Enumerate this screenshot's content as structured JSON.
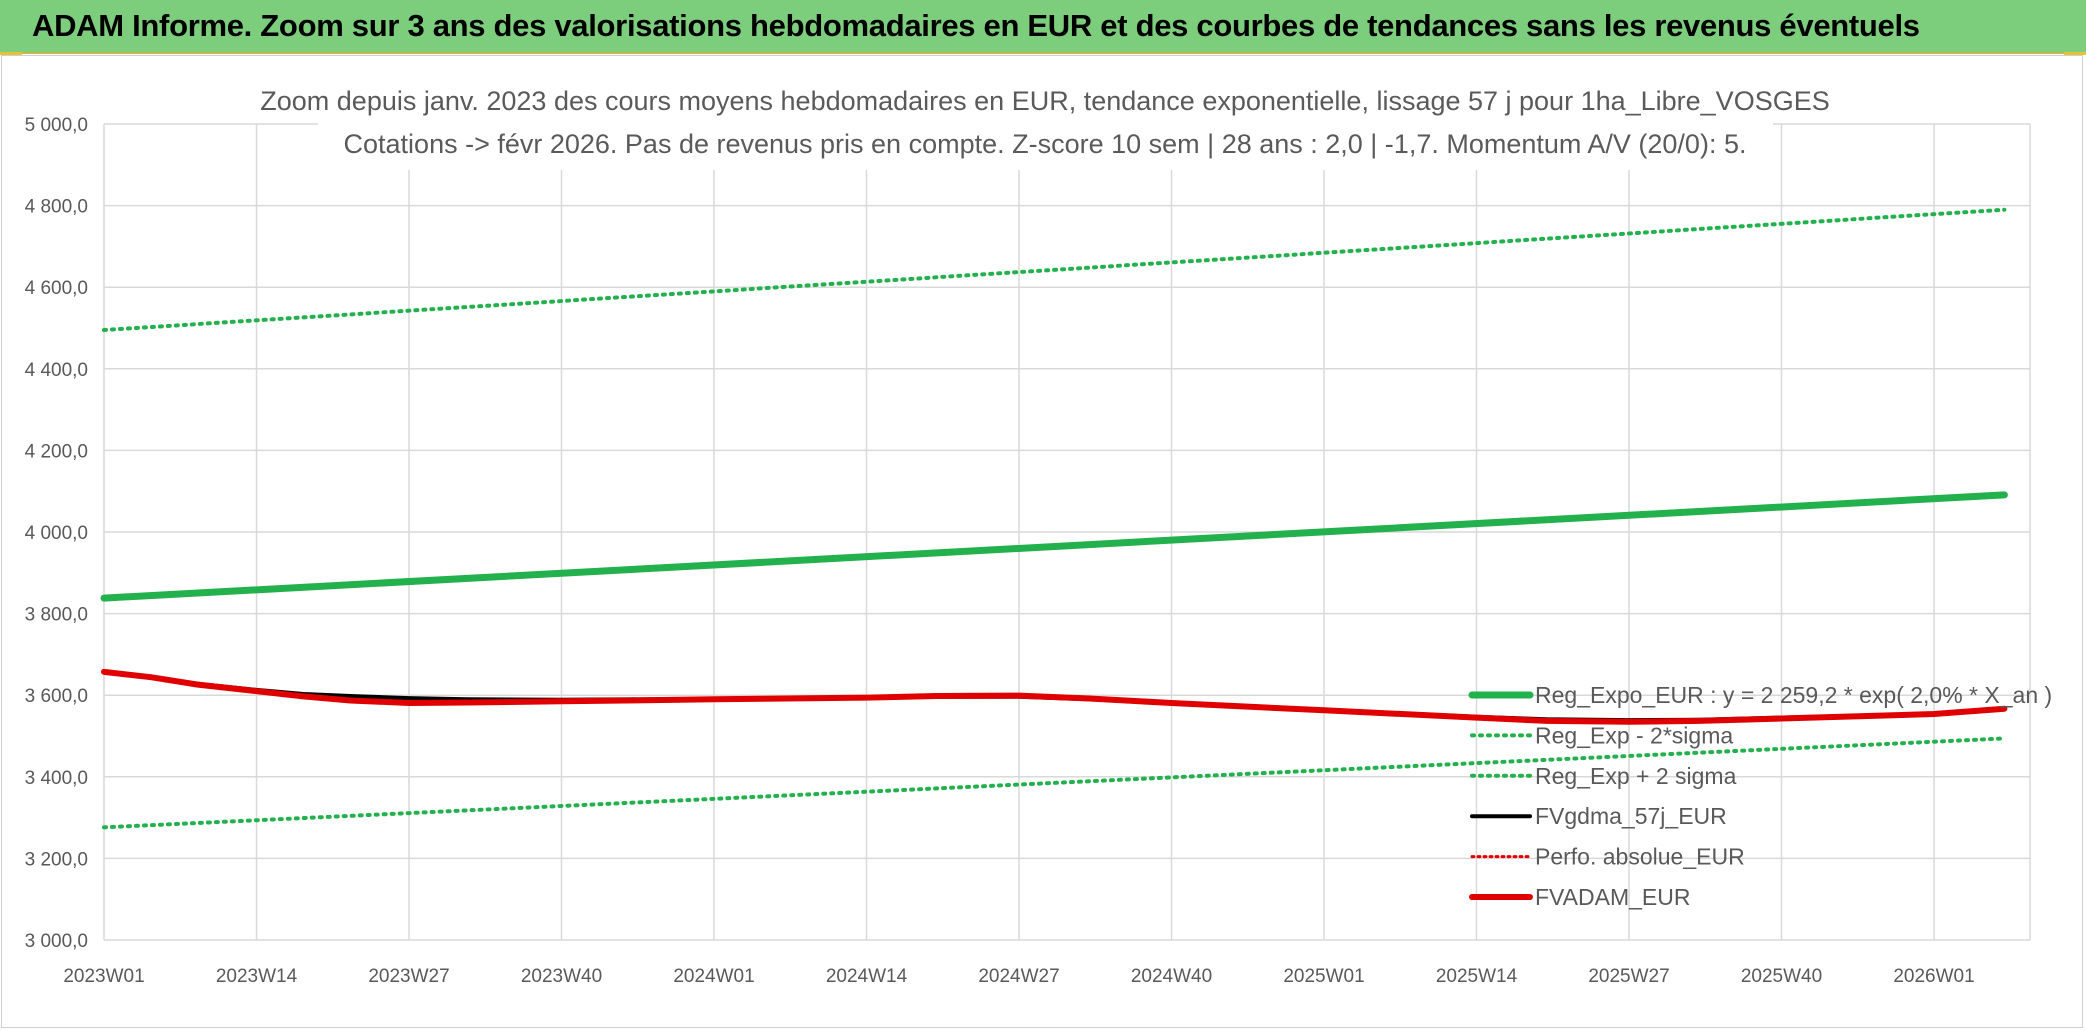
{
  "header": {
    "title": "ADAM Informe. Zoom sur 3 ans des valorisations hebdomadaires en EUR et des courbes de tendances sans les revenus éventuels"
  },
  "colors": {
    "banner": "#7ccd7c",
    "reg_expo": "#22b14c",
    "sigma": "#22b14c",
    "fvgdma": "#000000",
    "perfo": "#e00000",
    "fvadam": "#e00000",
    "grid": "#d9d9d9"
  },
  "chart_data": {
    "type": "line",
    "title_line1": "Zoom depuis janv. 2023 des cours moyens hebdomadaires en EUR, tendance exponentielle, lissage 57 j pour 1ha_Libre_VOSGES",
    "title_line2": "Cotations -> févr 2026. Pas de revenus pris en compte. Z-score 10 sem | 28 ans : 2,0 | -1,7. Momentum A/V (20/0): 5.",
    "ylim": [
      3000,
      5000
    ],
    "yticks": [
      3000,
      3200,
      3400,
      3600,
      3800,
      4000,
      4200,
      4400,
      4600,
      4800,
      5000
    ],
    "ytick_labels": [
      "3 000,0",
      "3 200,0",
      "3 400,0",
      "3 600,0",
      "3 800,0",
      "4 000,0",
      "4 200,0",
      "4 400,0",
      "4 600,0",
      "4 800,0",
      "5 000,0"
    ],
    "x_categories": [
      "2023W01",
      "2023W14",
      "2023W27",
      "2023W40",
      "2024W01",
      "2024W14",
      "2024W27",
      "2024W40",
      "2025W01",
      "2025W14",
      "2025W27",
      "2025W40",
      "2026W01"
    ],
    "x_last": "2026W07",
    "grid": true,
    "legend_position": "bottom-right",
    "series": [
      {
        "name": "Reg_Expo_EUR : y = 2 259,2 * exp( 2,0% * X_an )",
        "style": "solid-thick",
        "x": [
          "2023W01",
          "2026W07"
        ],
        "values": [
          3838,
          4091
        ]
      },
      {
        "name": "Reg_Exp - 2*sigma",
        "style": "dotted",
        "x": [
          "2023W01",
          "2026W07"
        ],
        "values": [
          3276,
          3494
        ]
      },
      {
        "name": "Reg_Exp + 2 sigma",
        "style": "dotted",
        "x": [
          "2023W01",
          "2026W07"
        ],
        "values": [
          4495,
          4790
        ]
      },
      {
        "name": "FVgdma_57j_EUR",
        "style": "solid",
        "x": [
          "2023W01",
          "2023W05",
          "2023W09",
          "2023W14",
          "2023W18",
          "2023W22",
          "2023W27",
          "2023W32",
          "2023W40",
          "2024W01",
          "2024W14",
          "2024W20",
          "2024W27",
          "2024W33",
          "2024W40",
          "2025W01",
          "2025W14",
          "2025W20",
          "2025W27",
          "2025W33",
          "2025W40",
          "2026W01",
          "2026W07"
        ],
        "values": [
          3657,
          3645,
          3628,
          3613,
          3603,
          3598,
          3593,
          3590,
          3589,
          3591,
          3594,
          3596,
          3596,
          3590,
          3580,
          3563,
          3547,
          3541,
          3539,
          3540,
          3545,
          3555,
          3567
        ]
      },
      {
        "name": "Perfo. absolue_EUR",
        "style": "dotted",
        "x": [],
        "values": []
      },
      {
        "name": "FVADAM_EUR",
        "style": "solid-thick",
        "x": [
          "2023W01",
          "2023W05",
          "2023W09",
          "2023W14",
          "2023W18",
          "2023W22",
          "2023W27",
          "2023W32",
          "2023W40",
          "2024W01",
          "2024W14",
          "2024W20",
          "2024W27",
          "2024W33",
          "2024W40",
          "2025W01",
          "2025W14",
          "2025W20",
          "2025W27",
          "2025W33",
          "2025W40",
          "2026W01",
          "2026W07"
        ],
        "values": [
          3657,
          3644,
          3626,
          3610,
          3597,
          3587,
          3581,
          3582,
          3585,
          3590,
          3594,
          3598,
          3599,
          3592,
          3581,
          3563,
          3545,
          3537,
          3535,
          3537,
          3543,
          3554,
          3567
        ]
      }
    ]
  }
}
